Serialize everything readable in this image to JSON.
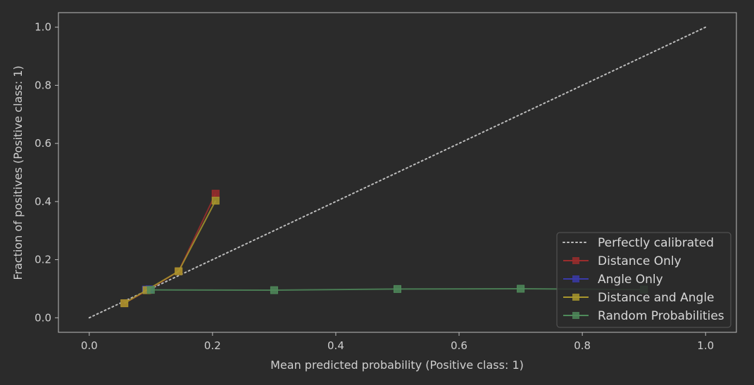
{
  "chart_data": {
    "type": "line",
    "title": "",
    "xlabel": "Mean predicted probability (Positive class: 1)",
    "ylabel": "Fraction of positives (Positive class: 1)",
    "xlim": [
      -0.05,
      1.05
    ],
    "ylim": [
      -0.05,
      1.05
    ],
    "xticks": [
      "0.0",
      "0.2",
      "0.4",
      "0.6",
      "0.8",
      "1.0"
    ],
    "yticks": [
      "0.0",
      "0.2",
      "0.4",
      "0.6",
      "0.8",
      "1.0"
    ],
    "grid": false,
    "legend_position": "lower-right",
    "reference": {
      "name": "Perfectly calibrated",
      "x": [
        0,
        1
      ],
      "y": [
        0,
        1
      ],
      "color": "#bdbdbd",
      "style": "dotted"
    },
    "series": [
      {
        "name": "Distance Only",
        "color": "#9b2d2d",
        "x": [
          0.057,
          0.095,
          0.145,
          0.205
        ],
        "y": [
          0.05,
          0.095,
          0.16,
          0.427
        ]
      },
      {
        "name": "Angle Only",
        "color": "#3a3aa8",
        "x": [
          0.092,
          0.098
        ],
        "y": [
          0.097,
          0.098
        ]
      },
      {
        "name": "Distance and Angle",
        "color": "#a8962d",
        "x": [
          0.057,
          0.093,
          0.145,
          0.205
        ],
        "y": [
          0.05,
          0.095,
          0.16,
          0.403
        ]
      },
      {
        "name": "Random Probabilities",
        "color": "#4f8a5a",
        "x": [
          0.1,
          0.3,
          0.5,
          0.7,
          0.9
        ],
        "y": [
          0.096,
          0.095,
          0.099,
          0.1,
          0.097
        ]
      }
    ]
  }
}
